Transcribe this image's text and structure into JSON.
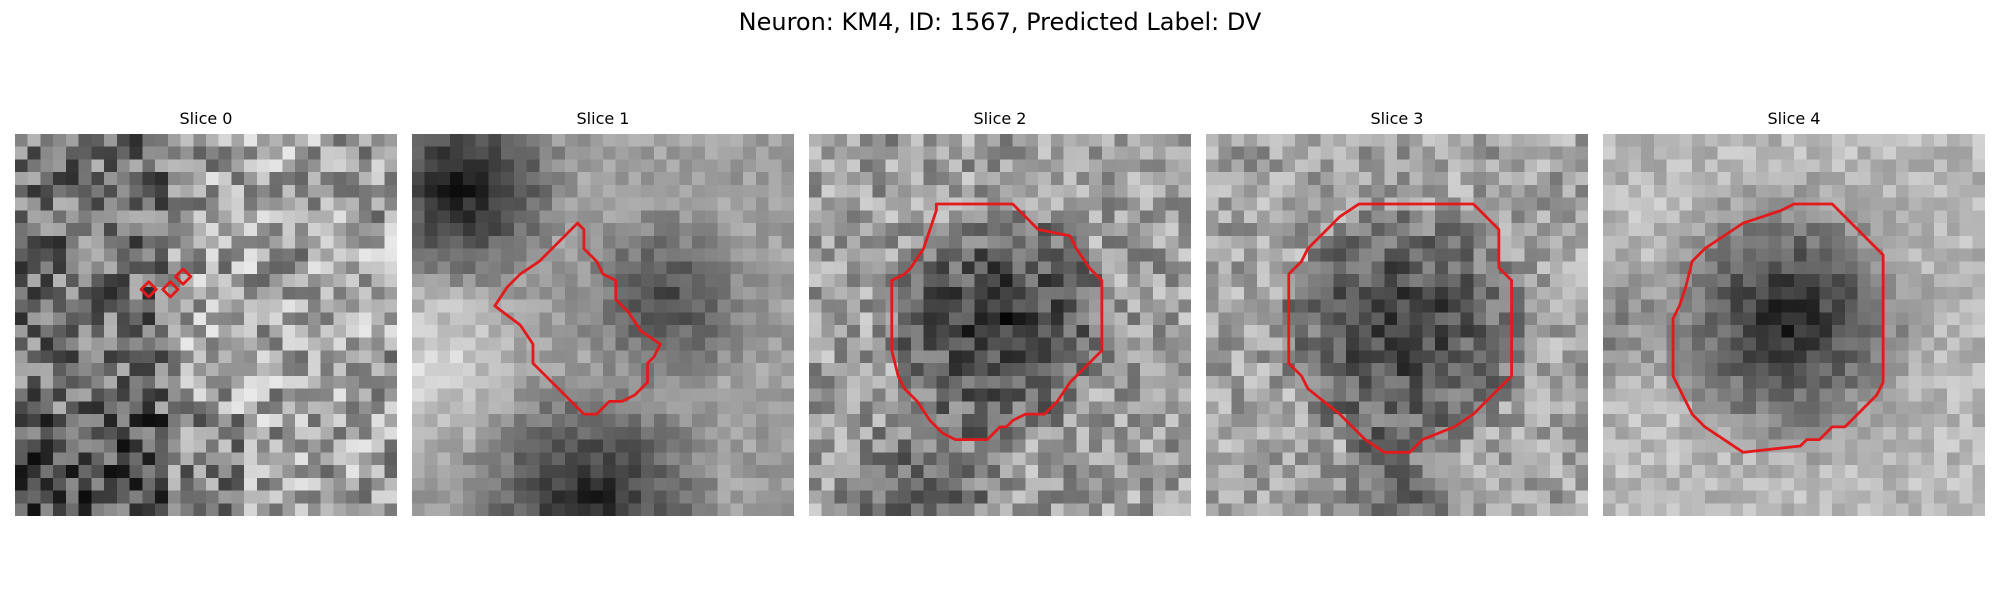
{
  "figure": {
    "suptitle": "Neuron: KM4, ID: 1567, Predicted Label: DV",
    "contour_color": "#e31a1c",
    "colormap": "gray",
    "grid_cells": 30,
    "panels": [
      {
        "title": "Slice 0",
        "contours": [
          [
            [
              10.5,
              12.8
            ],
            [
              9.9,
              12.2
            ],
            [
              10.5,
              11.6
            ],
            [
              11.1,
              12.2
            ]
          ],
          [
            [
              12.2,
              12.8
            ],
            [
              11.6,
              12.2
            ],
            [
              12.2,
              11.6
            ],
            [
              12.8,
              12.2
            ]
          ],
          [
            [
              13.2,
              11.8
            ],
            [
              12.6,
              11.2
            ],
            [
              13.2,
              10.6
            ],
            [
              13.8,
              11.2
            ]
          ]
        ]
      },
      {
        "title": "Slice 1",
        "contours": [
          [
            [
              13.0,
              7.0
            ],
            [
              13.5,
              7.5
            ],
            [
              13.5,
              9.0
            ],
            [
              14.5,
              10.0
            ],
            [
              15.0,
              11.0
            ],
            [
              16.0,
              11.5
            ],
            [
              16.0,
              13.0
            ],
            [
              17.0,
              14.0
            ],
            [
              18.0,
              15.5
            ],
            [
              19.5,
              16.5
            ],
            [
              19.0,
              17.5
            ],
            [
              18.5,
              18.0
            ],
            [
              18.5,
              19.5
            ],
            [
              17.5,
              20.5
            ],
            [
              16.5,
              21.0
            ],
            [
              15.5,
              21.0
            ],
            [
              14.5,
              22.0
            ],
            [
              13.5,
              22.0
            ],
            [
              12.5,
              21.0
            ],
            [
              11.5,
              20.0
            ],
            [
              10.5,
              19.0
            ],
            [
              9.5,
              18.0
            ],
            [
              9.5,
              16.5
            ],
            [
              8.5,
              15.0
            ],
            [
              6.5,
              13.5
            ],
            [
              7.5,
              12.0
            ],
            [
              8.5,
              11.0
            ],
            [
              10.0,
              10.0
            ],
            [
              11.5,
              8.5
            ]
          ]
        ]
      },
      {
        "title": "Slice 2",
        "contours": [
          [
            [
              10.0,
              5.5
            ],
            [
              16.0,
              5.5
            ],
            [
              17.0,
              6.5
            ],
            [
              18.0,
              7.5
            ],
            [
              20.5,
              8.0
            ],
            [
              21.0,
              9.0
            ],
            [
              22.0,
              10.5
            ],
            [
              23.0,
              11.5
            ],
            [
              23.0,
              17.0
            ],
            [
              21.5,
              18.5
            ],
            [
              20.5,
              19.5
            ],
            [
              19.5,
              21.0
            ],
            [
              18.5,
              22.0
            ],
            [
              17.0,
              22.0
            ],
            [
              16.0,
              22.5
            ],
            [
              15.5,
              23.0
            ],
            [
              15.0,
              23.0
            ],
            [
              14.0,
              24.0
            ],
            [
              11.5,
              24.0
            ],
            [
              10.5,
              23.5
            ],
            [
              9.5,
              22.5
            ],
            [
              8.5,
              21.0
            ],
            [
              7.5,
              20.0
            ],
            [
              7.0,
              19.0
            ],
            [
              6.5,
              17.0
            ],
            [
              6.5,
              11.5
            ],
            [
              7.5,
              11.0
            ],
            [
              8.0,
              10.5
            ],
            [
              9.0,
              9.0
            ],
            [
              9.5,
              7.5
            ],
            [
              10.0,
              6.0
            ]
          ]
        ]
      },
      {
        "title": "Slice 3",
        "contours": [
          [
            [
              12.0,
              5.5
            ],
            [
              21.0,
              5.5
            ],
            [
              22.5,
              7.0
            ],
            [
              23.0,
              7.5
            ],
            [
              23.0,
              10.5
            ],
            [
              24.0,
              11.5
            ],
            [
              24.0,
              19.0
            ],
            [
              22.5,
              20.5
            ],
            [
              21.0,
              22.0
            ],
            [
              19.5,
              23.0
            ],
            [
              17.0,
              24.0
            ],
            [
              16.0,
              25.0
            ],
            [
              14.0,
              25.0
            ],
            [
              12.5,
              24.0
            ],
            [
              10.5,
              22.0
            ],
            [
              8.0,
              20.0
            ],
            [
              7.5,
              19.0
            ],
            [
              6.5,
              18.0
            ],
            [
              6.5,
              11.0
            ],
            [
              7.5,
              10.0
            ],
            [
              8.0,
              9.0
            ],
            [
              10.5,
              6.5
            ]
          ]
        ]
      },
      {
        "title": "Slice 4",
        "contours": [
          [
            [
              16.5,
              5.5
            ],
            [
              18.0,
              5.5
            ],
            [
              19.5,
              7.0
            ],
            [
              21.0,
              8.5
            ],
            [
              22.0,
              9.5
            ],
            [
              22.0,
              19.5
            ],
            [
              21.5,
              20.5
            ],
            [
              20.0,
              22.0
            ],
            [
              19.0,
              23.0
            ],
            [
              18.0,
              23.0
            ],
            [
              17.0,
              24.0
            ],
            [
              16.0,
              24.0
            ],
            [
              15.5,
              24.5
            ],
            [
              11.0,
              25.0
            ],
            [
              9.5,
              24.0
            ],
            [
              8.0,
              23.0
            ],
            [
              7.0,
              22.0
            ],
            [
              6.5,
              21.0
            ],
            [
              6.0,
              20.0
            ],
            [
              5.5,
              19.0
            ],
            [
              5.5,
              14.5
            ],
            [
              6.0,
              13.5
            ],
            [
              6.5,
              12.0
            ],
            [
              7.0,
              10.0
            ],
            [
              8.0,
              9.0
            ],
            [
              9.5,
              8.0
            ],
            [
              11.0,
              7.0
            ],
            [
              12.5,
              6.5
            ],
            [
              14.0,
              6.0
            ],
            [
              15.0,
              5.5
            ]
          ]
        ]
      }
    ]
  }
}
